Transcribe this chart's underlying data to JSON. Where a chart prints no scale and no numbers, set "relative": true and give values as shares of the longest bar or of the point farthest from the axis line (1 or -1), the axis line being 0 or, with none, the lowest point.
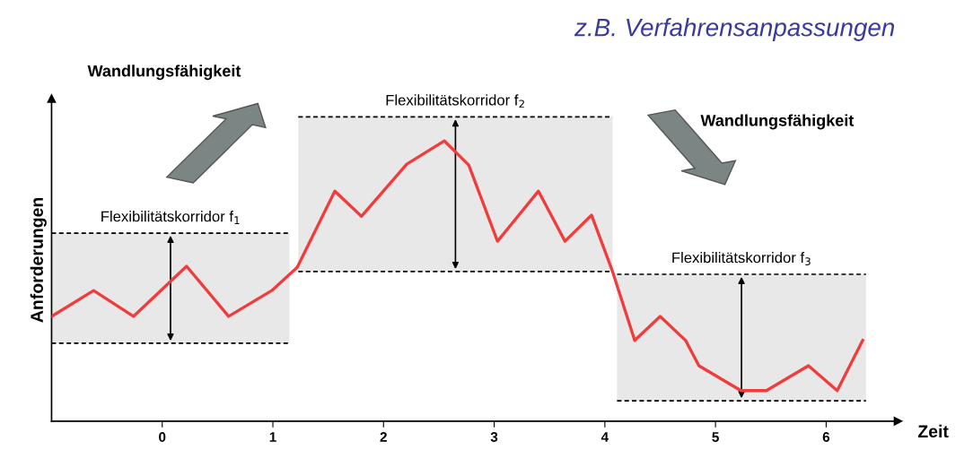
{
  "chart_data": {
    "type": "line",
    "title": "z.B. Verfahrensanpassungen",
    "xlabel": "Zeit",
    "ylabel": "Anforderungen",
    "relative": true,
    "xlim": [
      -1.0,
      6.65
    ],
    "xticks": [
      0,
      1,
      2,
      3,
      4,
      5,
      6
    ],
    "grid": false,
    "marker": "none",
    "line_style": "solid",
    "series": [
      {
        "color": "#f03c3c",
        "x": [
          -1.0,
          -0.62,
          -0.26,
          0.22,
          0.6,
          0.99,
          1.22,
          1.56,
          1.8,
          2.21,
          2.55,
          2.77,
          3.03,
          3.4,
          3.64,
          3.88,
          4.07,
          4.27,
          4.5,
          4.73,
          4.85,
          5.23,
          5.46,
          5.84,
          6.1,
          6.33
        ],
        "values": [
          0.374,
          0.466,
          0.374,
          0.553,
          0.374,
          0.466,
          0.549,
          0.821,
          0.731,
          0.917,
          1.0,
          0.914,
          0.642,
          0.821,
          0.642,
          0.735,
          0.534,
          0.288,
          0.374,
          0.288,
          0.198,
          0.109,
          0.109,
          0.198,
          0.109,
          0.288
        ]
      }
    ],
    "bands": [
      {
        "axis": "x",
        "from": -1.0,
        "to": 1.15,
        "label": "Flexibilitätskorridor f$_{1}$",
        "color": "#e8e8e8"
      },
      {
        "axis": "x",
        "from": 1.23,
        "to": 4.07,
        "label": "Flexibilitätskorridor f$_{2}$",
        "color": "#e8e8e8"
      },
      {
        "axis": "x",
        "from": 4.11,
        "to": 6.36,
        "label": "Flexibilitätskorridor f$_{3}$",
        "color": "#e8e8e8"
      }
    ],
    "ref_lines": [
      {
        "axis": "y",
        "value": 0.671,
        "line_style": "dashed",
        "color": "#000000"
      },
      {
        "axis": "y",
        "value": 0.278,
        "line_style": "dashed",
        "color": "#000000"
      },
      {
        "axis": "y",
        "value": 1.086,
        "line_style": "dashed",
        "color": "#000000"
      },
      {
        "axis": "y",
        "value": 0.534,
        "line_style": "dashed",
        "color": "#000000"
      },
      {
        "axis": "y",
        "value": 0.524,
        "line_style": "dashed",
        "color": "#000000"
      },
      {
        "axis": "y",
        "value": 0.073,
        "line_style": "dashed",
        "color": "#000000"
      }
    ],
    "annotations": [
      "Wandlungsfähigkeit",
      "Wandlungsfähigkeit"
    ]
  }
}
